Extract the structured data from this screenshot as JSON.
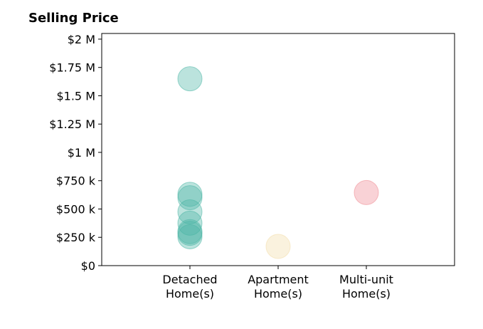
{
  "chart_data": {
    "type": "scatter",
    "title": "Selling Price",
    "xlabel": "",
    "ylabel": "",
    "categories": [
      [
        "Detached",
        "Home(s)"
      ],
      [
        "Apartment",
        "Home(s)"
      ],
      [
        "Multi-unit",
        "Home(s)"
      ]
    ],
    "ylim": [
      0,
      2050000
    ],
    "yticks": [
      {
        "value": 0,
        "label": "$0"
      },
      {
        "value": 250000,
        "label": "$250 k"
      },
      {
        "value": 500000,
        "label": "$500 k"
      },
      {
        "value": 750000,
        "label": "$750 k"
      },
      {
        "value": 1000000,
        "label": "$1 M"
      },
      {
        "value": 1250000,
        "label": "$1.25 M"
      },
      {
        "value": 1500000,
        "label": "$1.5 M"
      },
      {
        "value": 1750000,
        "label": "$1.75 M"
      },
      {
        "value": 2000000,
        "label": "$2 M"
      }
    ],
    "grid": false,
    "points": [
      {
        "category": 0,
        "y": 1650000,
        "color": "#4db6a6"
      },
      {
        "category": 0,
        "y": 630000,
        "color": "#4db6a6"
      },
      {
        "category": 0,
        "y": 600000,
        "color": "#4db6a6"
      },
      {
        "category": 0,
        "y": 475000,
        "color": "#4db6a6"
      },
      {
        "category": 0,
        "y": 375000,
        "color": "#4db6a6"
      },
      {
        "category": 0,
        "y": 300000,
        "color": "#4db6a6"
      },
      {
        "category": 0,
        "y": 285000,
        "color": "#4db6a6"
      },
      {
        "category": 0,
        "y": 255000,
        "color": "#4db6a6"
      },
      {
        "category": 1,
        "y": 170000,
        "color": "#f2dca7"
      },
      {
        "category": 2,
        "y": 645000,
        "color": "#ef8a92"
      }
    ]
  }
}
